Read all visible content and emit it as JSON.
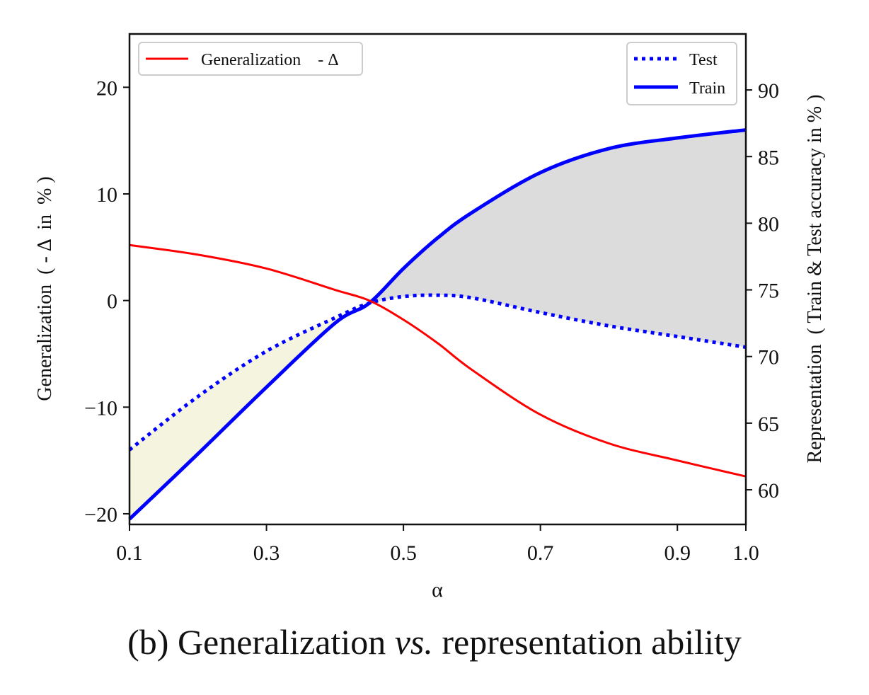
{
  "figure": {
    "caption_prefix": "(b) Generalization ",
    "caption_italic": "vs.",
    "caption_suffix": " representation ability"
  },
  "chart_data": {
    "type": "line",
    "x_ticks": [
      "0.1",
      "0.3",
      "0.5",
      "0.7",
      "0.9",
      "1.0"
    ],
    "x_tick_values": [
      0.1,
      0.3,
      0.5,
      0.7,
      0.9,
      1.0
    ],
    "xlabel": "α",
    "xlim": [
      0.1,
      1.0
    ],
    "y_left": {
      "label": "Generalization  ( - Δ  in  % )",
      "ylim": [
        -21,
        25
      ],
      "ticks": [
        "20",
        "10",
        "0",
        "−10",
        "−20"
      ],
      "tick_values": [
        20,
        10,
        0,
        -10,
        -20
      ]
    },
    "y_right": {
      "label": "Representation  ( Train & Test accuracy in % )",
      "ylim": [
        57.4,
        94.2
      ],
      "ticks": [
        "90",
        "85",
        "80",
        "75",
        "70",
        "65",
        "60"
      ],
      "tick_values": [
        90,
        85,
        80,
        75,
        70,
        65,
        60
      ]
    },
    "x": [
      0.1,
      0.2,
      0.3,
      0.4,
      0.45,
      0.5,
      0.55,
      0.6,
      0.7,
      0.8,
      0.9,
      1.0
    ],
    "series": [
      {
        "name": "Generalization    - Δ",
        "axis": "left",
        "color": "#ff0000",
        "style": "solid",
        "values": [
          5.2,
          4.3,
          3.0,
          1.0,
          0.0,
          -1.8,
          -4.0,
          -6.5,
          -10.7,
          -13.4,
          -15.0,
          -16.5
        ]
      },
      {
        "name": "Test",
        "axis": "right",
        "color": "#0000ff",
        "style": "dotted",
        "values": [
          63.0,
          67.0,
          70.4,
          72.9,
          74.0,
          74.5,
          74.6,
          74.4,
          73.3,
          72.3,
          71.5,
          70.7
        ]
      },
      {
        "name": "Train",
        "axis": "right",
        "color": "#0000ff",
        "style": "solid",
        "values": [
          57.8,
          62.7,
          67.7,
          72.5,
          74.0,
          76.6,
          78.9,
          80.8,
          83.8,
          85.6,
          86.4,
          87.0
        ]
      }
    ],
    "fills": [
      {
        "between": [
          "Test",
          "Train"
        ],
        "where": "Test > Train",
        "color": "#f5f4df"
      },
      {
        "between": [
          "Train",
          "Test"
        ],
        "where": "Train > Test",
        "color": "#dcdcdc"
      }
    ],
    "legends": [
      {
        "placement": "top-left",
        "entries": [
          "Generalization    - Δ"
        ]
      },
      {
        "placement": "top-right",
        "entries": [
          "Test",
          "Train"
        ]
      }
    ],
    "grid": false
  }
}
